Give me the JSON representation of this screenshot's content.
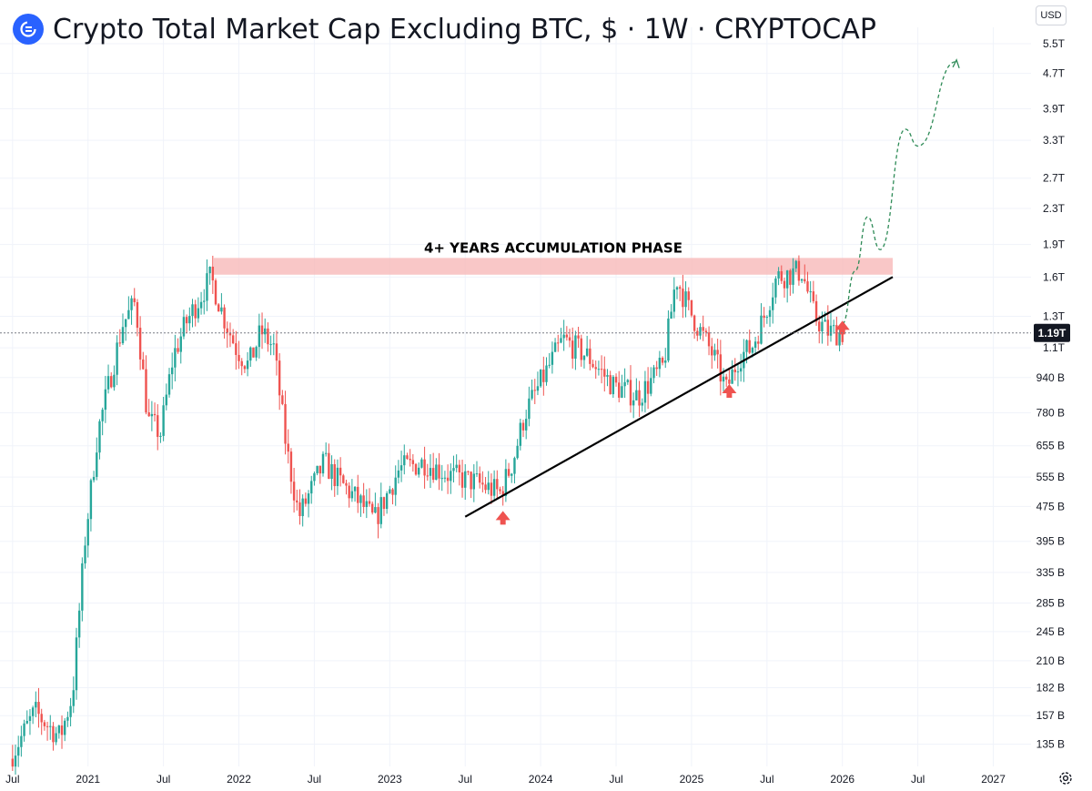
{
  "header": {
    "title": "Crypto Total Market Cap Excluding BTC, $ · 1W · CRYPTOCAP",
    "logo_icon": "crypto-cap-logo-icon",
    "currency_label": "USD"
  },
  "colors": {
    "up": "#26a69a",
    "down": "#ef5350",
    "zone": "#f8b9b9",
    "trendline": "#000000",
    "projection": "#2e8b57",
    "arrow": "#ef5350",
    "price_badge": "#131722",
    "grid": "#f0f3fa"
  },
  "chart_data": {
    "type": "candlestick",
    "title": "Crypto Total Market Cap Excluding BTC, $ · 1W · CRYPTOCAP",
    "interval": "1W",
    "y_scale": "log",
    "y_range": [
      "120B",
      "6T"
    ],
    "x_range": [
      "2020-06",
      "2027-04"
    ],
    "y_ticks": [
      "5.5T",
      "4.7T",
      "3.9T",
      "3.3T",
      "2.7T",
      "2.3T",
      "1.9T",
      "1.6T",
      "1.3T",
      "1.1T",
      "940 B",
      "780 B",
      "655 B",
      "555 B",
      "475 B",
      "395 B",
      "335 B",
      "285 B",
      "245 B",
      "210 B",
      "182 B",
      "157 B",
      "135 B"
    ],
    "x_ticks": [
      "Jul",
      "2021",
      "Jul",
      "2022",
      "Jul",
      "2023",
      "Jul",
      "2024",
      "Jul",
      "2025",
      "Jul",
      "2026",
      "Jul",
      "2027"
    ],
    "last_price_label": "1.19T",
    "price_path": [
      [
        "2020-07",
        "125B"
      ],
      [
        "2020-09",
        "160B"
      ],
      [
        "2020-11",
        "140B"
      ],
      [
        "2020-12",
        "175B"
      ],
      [
        "2021-01",
        "400B"
      ],
      [
        "2021-02",
        "700B"
      ],
      [
        "2021-04",
        "1.25T"
      ],
      [
        "2021-05",
        "1.4T"
      ],
      [
        "2021-06",
        "750B"
      ],
      [
        "2021-07",
        "700B"
      ],
      [
        "2021-08",
        "1.05T"
      ],
      [
        "2021-09",
        "1.25T"
      ],
      [
        "2021-11",
        "1.6T"
      ],
      [
        "2021-12",
        "1.3T"
      ],
      [
        "2022-01",
        "1.1T"
      ],
      [
        "2022-02",
        "1.0T"
      ],
      [
        "2022-03",
        "1.2T"
      ],
      [
        "2022-04",
        "1.1T"
      ],
      [
        "2022-05",
        "650B"
      ],
      [
        "2022-06",
        "450B"
      ],
      [
        "2022-08",
        "600B"
      ],
      [
        "2022-09",
        "550B"
      ],
      [
        "2022-11",
        "480B"
      ],
      [
        "2022-12",
        "440B"
      ],
      [
        "2023-02",
        "580B"
      ],
      [
        "2023-04",
        "600B"
      ],
      [
        "2023-06",
        "560B"
      ],
      [
        "2023-08",
        "540B"
      ],
      [
        "2023-10",
        "510B"
      ],
      [
        "2023-11",
        "600B"
      ],
      [
        "2023-12",
        "780B"
      ],
      [
        "2024-03",
        "1.15T"
      ],
      [
        "2024-05",
        "1.05T"
      ],
      [
        "2024-07",
        "900B"
      ],
      [
        "2024-09",
        "850B"
      ],
      [
        "2024-11",
        "1.0T"
      ],
      [
        "2024-12",
        "1.6T"
      ],
      [
        "2025-01",
        "1.35T"
      ],
      [
        "2025-03",
        "1.05T"
      ],
      [
        "2025-04",
        "880B"
      ],
      [
        "2025-05",
        "1.05T"
      ],
      [
        "2025-06",
        "1.1T"
      ],
      [
        "2025-07",
        "1.3T"
      ],
      [
        "2025-08",
        "1.6T"
      ],
      [
        "2025-10",
        "1.65T"
      ],
      [
        "2025-11",
        "1.3T"
      ],
      [
        "2025-12",
        "1.2T"
      ],
      [
        "2026-01",
        "1.19T"
      ]
    ],
    "annotations": {
      "zone_label": "4+ YEARS ACCUMULATION PHASE",
      "zone_range": [
        "2021-11",
        "2026-05"
      ],
      "zone_price": [
        "1.62T",
        "1.77T"
      ],
      "trendline": [
        [
          "2023-07",
          "450B"
        ],
        [
          "2026-05",
          "1.6T"
        ]
      ],
      "arrows": [
        "2023-10",
        "2025-04",
        "2026-01"
      ],
      "projection": [
        [
          "2026-01",
          "1.25T"
        ],
        [
          "2026-02",
          "1.65T"
        ],
        [
          "2026-03",
          "2.2T"
        ],
        [
          "2026-04",
          "1.85T"
        ],
        [
          "2026-06",
          "3.5T"
        ],
        [
          "2026-07",
          "3.2T"
        ],
        [
          "2026-10",
          "5.0T"
        ]
      ]
    }
  }
}
